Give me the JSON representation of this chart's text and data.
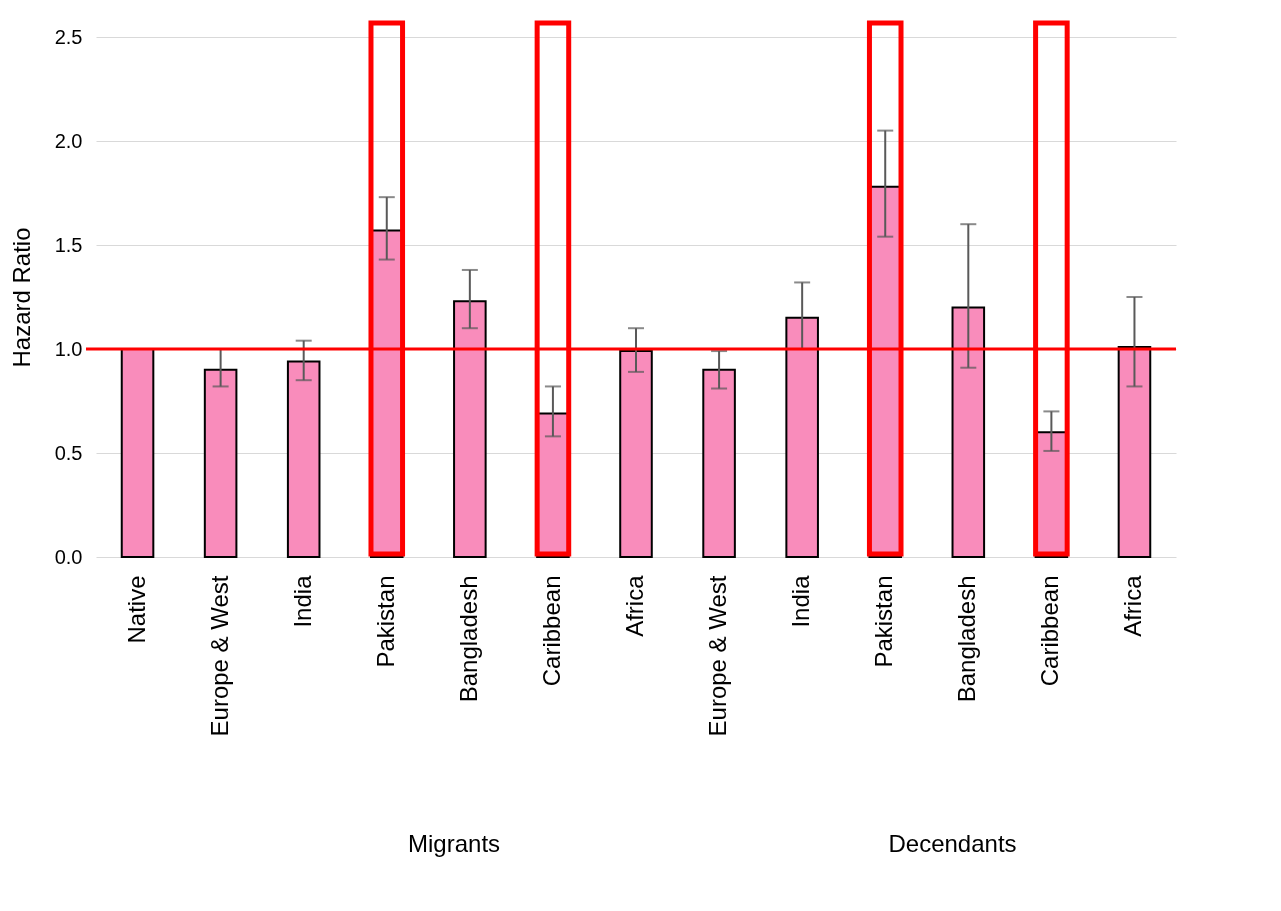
{
  "chart_data": {
    "type": "bar",
    "ylabel": "Hazard Ratio",
    "categories": [
      "Native",
      "Europe & West",
      "India",
      "Pakistan",
      "Bangladesh",
      "Caribbean",
      "Africa",
      "Europe & West",
      "India",
      "Pakistan",
      "Bangladesh",
      "Caribbean",
      "Africa"
    ],
    "values": [
      1.0,
      0.9,
      0.94,
      1.57,
      1.23,
      0.69,
      0.99,
      0.9,
      1.15,
      1.78,
      1.2,
      0.6,
      1.01
    ],
    "errors": [
      null,
      [
        0.82,
        1.0
      ],
      [
        0.85,
        1.04
      ],
      [
        1.43,
        1.73
      ],
      [
        1.1,
        1.38
      ],
      [
        0.58,
        0.82
      ],
      [
        0.89,
        1.1
      ],
      [
        0.81,
        0.99
      ],
      [
        1.0,
        1.32
      ],
      [
        1.54,
        2.05
      ],
      [
        0.91,
        1.6
      ],
      [
        0.51,
        0.7
      ],
      [
        0.82,
        1.25
      ]
    ],
    "color": "#f98cbb",
    "ylim": [
      0,
      2.5
    ],
    "yticks": [
      {
        "value": 0,
        "label": "0.0"
      },
      {
        "value": 0.5,
        "label": "0.5"
      },
      {
        "value": 1,
        "label": "1.0"
      },
      {
        "value": 1.5,
        "label": "1.5"
      },
      {
        "value": 2,
        "label": "2.0"
      },
      {
        "value": 2.5,
        "label": "2.5"
      }
    ],
    "grid": "y",
    "ref_lines": [
      {
        "axis": "y",
        "value": 1.0,
        "color": "#ff0000"
      }
    ],
    "annotations": [
      "Migrants",
      "Decendants"
    ]
  }
}
